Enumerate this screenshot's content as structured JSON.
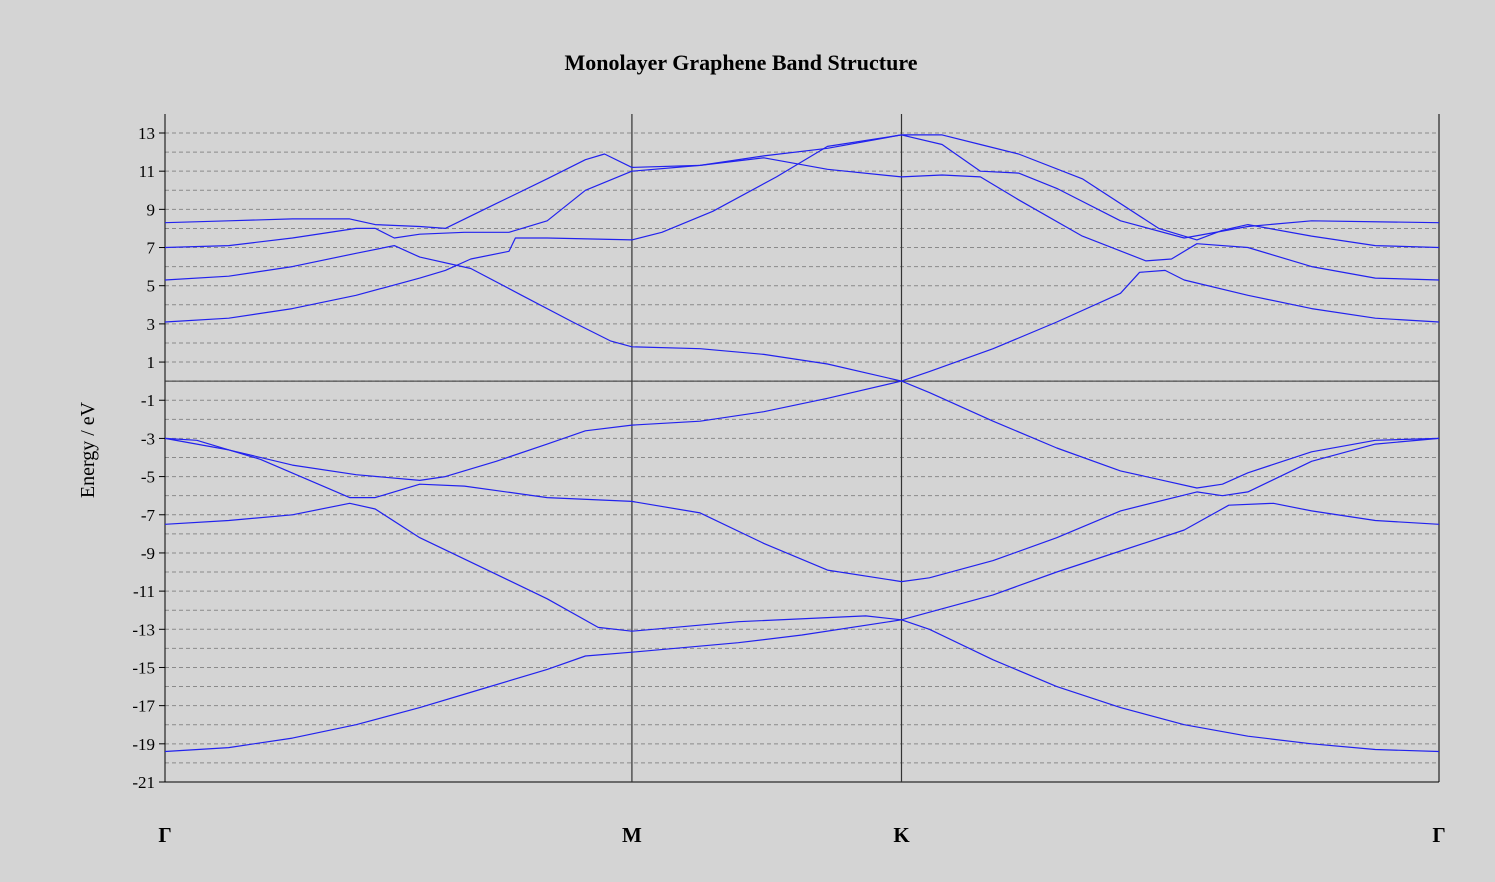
{
  "chart_data": {
    "type": "line",
    "title": "Monolayer Graphene Band Structure",
    "ylabel": "Energy / eV",
    "xlabel": "",
    "ylim": [
      -21,
      14
    ],
    "grid": "horizontal-dashed",
    "legend": "none",
    "y_ticks": [
      "13",
      "11",
      "9",
      "7",
      "5",
      "3",
      "1",
      "-1",
      "-3",
      "-5",
      "-7",
      "-9",
      "-11",
      "-13",
      "-15",
      "-17",
      "-19",
      "-21"
    ],
    "k_points": [
      {
        "label": "Γ",
        "x": 0
      },
      {
        "label": "M",
        "x": 0.3665
      },
      {
        "label": "K",
        "x": 0.5781
      },
      {
        "label": "Γ",
        "x": 1
      }
    ],
    "zero_line": 0,
    "series_color": "#2222ee",
    "bands": [
      {
        "points": [
          [
            0,
            -19.4
          ],
          [
            0.05,
            -19.2
          ],
          [
            0.1,
            -18.7
          ],
          [
            0.15,
            -18.0
          ],
          [
            0.2,
            -17.1
          ],
          [
            0.25,
            -16.1
          ],
          [
            0.3,
            -15.1
          ],
          [
            0.33,
            -14.4
          ],
          [
            0.3665,
            -14.2
          ],
          [
            0.45,
            -13.7
          ],
          [
            0.5,
            -13.3
          ],
          [
            0.5781,
            -12.5
          ],
          [
            0.65,
            -11.2
          ],
          [
            0.7,
            -10.0
          ],
          [
            0.75,
            -8.9
          ],
          [
            0.8,
            -7.8
          ],
          [
            0.835,
            -6.5
          ],
          [
            0.87,
            -6.4
          ],
          [
            0.9,
            -6.8
          ],
          [
            0.95,
            -7.3
          ],
          [
            1,
            -7.5
          ]
        ]
      },
      {
        "points": [
          [
            0,
            -7.5
          ],
          [
            0.05,
            -7.3
          ],
          [
            0.1,
            -7.0
          ],
          [
            0.145,
            -6.4
          ],
          [
            0.165,
            -6.7
          ],
          [
            0.2,
            -8.2
          ],
          [
            0.25,
            -9.8
          ],
          [
            0.3,
            -11.4
          ],
          [
            0.34,
            -12.9
          ],
          [
            0.3665,
            -13.1
          ],
          [
            0.45,
            -12.6
          ],
          [
            0.55,
            -12.3
          ],
          [
            0.5781,
            -12.5
          ],
          [
            0.6,
            -13.0
          ],
          [
            0.65,
            -14.6
          ],
          [
            0.7,
            -16.0
          ],
          [
            0.75,
            -17.1
          ],
          [
            0.8,
            -18.0
          ],
          [
            0.85,
            -18.6
          ],
          [
            0.9,
            -19.0
          ],
          [
            0.95,
            -19.3
          ],
          [
            1,
            -19.4
          ]
        ]
      },
      {
        "points": [
          [
            0,
            -3.0
          ],
          [
            0.025,
            -3.1
          ],
          [
            0.075,
            -4.1
          ],
          [
            0.145,
            -6.1
          ],
          [
            0.165,
            -6.1
          ],
          [
            0.2,
            -5.4
          ],
          [
            0.235,
            -5.5
          ],
          [
            0.3,
            -6.1
          ],
          [
            0.3665,
            -6.3
          ],
          [
            0.42,
            -6.9
          ],
          [
            0.47,
            -8.5
          ],
          [
            0.52,
            -9.9
          ],
          [
            0.5781,
            -10.5
          ],
          [
            0.6,
            -10.3
          ],
          [
            0.65,
            -9.4
          ],
          [
            0.7,
            -8.2
          ],
          [
            0.75,
            -6.8
          ],
          [
            0.81,
            -5.8
          ],
          [
            0.83,
            -6.0
          ],
          [
            0.85,
            -5.8
          ],
          [
            0.9,
            -4.2
          ],
          [
            0.95,
            -3.3
          ],
          [
            1,
            -3.0
          ]
        ]
      },
      {
        "points": [
          [
            0,
            -3.0
          ],
          [
            0.05,
            -3.6
          ],
          [
            0.1,
            -4.4
          ],
          [
            0.15,
            -4.9
          ],
          [
            0.2,
            -5.2
          ],
          [
            0.22,
            -5.0
          ],
          [
            0.26,
            -4.2
          ],
          [
            0.3,
            -3.3
          ],
          [
            0.33,
            -2.6
          ],
          [
            0.3665,
            -2.3
          ],
          [
            0.42,
            -2.1
          ],
          [
            0.47,
            -1.6
          ],
          [
            0.52,
            -0.9
          ],
          [
            0.5781,
            0.0
          ],
          [
            0.6,
            -0.6
          ],
          [
            0.65,
            -2.1
          ],
          [
            0.7,
            -3.5
          ],
          [
            0.75,
            -4.7
          ],
          [
            0.81,
            -5.6
          ],
          [
            0.83,
            -5.4
          ],
          [
            0.85,
            -4.8
          ],
          [
            0.9,
            -3.7
          ],
          [
            0.95,
            -3.1
          ],
          [
            1,
            -3.0
          ]
        ]
      },
      {
        "points": [
          [
            0,
            3.1
          ],
          [
            0.05,
            3.3
          ],
          [
            0.1,
            3.8
          ],
          [
            0.15,
            4.5
          ],
          [
            0.2,
            5.4
          ],
          [
            0.22,
            5.8
          ],
          [
            0.24,
            6.4
          ],
          [
            0.27,
            6.8
          ],
          [
            0.275,
            7.5
          ],
          [
            0.3,
            7.5
          ],
          [
            0.3665,
            7.4
          ],
          [
            0.39,
            7.8
          ],
          [
            0.43,
            8.9
          ],
          [
            0.48,
            10.7
          ],
          [
            0.52,
            12.3
          ],
          [
            0.5781,
            12.9
          ],
          [
            0.61,
            12.4
          ],
          [
            0.64,
            11.0
          ],
          [
            0.67,
            10.9
          ],
          [
            0.7,
            10.1
          ],
          [
            0.75,
            8.4
          ],
          [
            0.8,
            7.5
          ],
          [
            0.85,
            8.1
          ],
          [
            0.9,
            8.4
          ],
          [
            1,
            8.3
          ]
        ]
      },
      {
        "points": [
          [
            0,
            5.3
          ],
          [
            0.05,
            5.5
          ],
          [
            0.1,
            6.0
          ],
          [
            0.15,
            6.7
          ],
          [
            0.18,
            7.1
          ],
          [
            0.2,
            6.5
          ],
          [
            0.24,
            5.9
          ],
          [
            0.28,
            4.5
          ],
          [
            0.32,
            3.1
          ],
          [
            0.35,
            2.1
          ],
          [
            0.3665,
            1.8
          ],
          [
            0.42,
            1.7
          ],
          [
            0.47,
            1.4
          ],
          [
            0.52,
            0.9
          ],
          [
            0.5781,
            0.0
          ],
          [
            0.6,
            0.5
          ],
          [
            0.65,
            1.7
          ],
          [
            0.7,
            3.1
          ],
          [
            0.75,
            4.6
          ],
          [
            0.765,
            5.7
          ],
          [
            0.785,
            5.8
          ],
          [
            0.8,
            5.3
          ],
          [
            0.85,
            4.5
          ],
          [
            0.9,
            3.8
          ],
          [
            0.95,
            3.3
          ],
          [
            1,
            3.1
          ]
        ]
      },
      {
        "points": [
          [
            0,
            7.0
          ],
          [
            0.05,
            7.1
          ],
          [
            0.1,
            7.5
          ],
          [
            0.15,
            8.0
          ],
          [
            0.165,
            8.0
          ],
          [
            0.18,
            7.5
          ],
          [
            0.2,
            7.7
          ],
          [
            0.235,
            7.8
          ],
          [
            0.27,
            7.8
          ],
          [
            0.3,
            8.4
          ],
          [
            0.33,
            10.0
          ],
          [
            0.3665,
            11.0
          ],
          [
            0.42,
            11.3
          ],
          [
            0.47,
            11.8
          ],
          [
            0.52,
            12.2
          ],
          [
            0.5781,
            12.9
          ],
          [
            0.61,
            12.9
          ],
          [
            0.64,
            12.4
          ],
          [
            0.67,
            11.9
          ],
          [
            0.72,
            10.6
          ],
          [
            0.78,
            8.0
          ],
          [
            0.81,
            7.4
          ],
          [
            0.83,
            7.9
          ],
          [
            0.85,
            8.2
          ],
          [
            0.9,
            7.6
          ],
          [
            0.95,
            7.1
          ],
          [
            1,
            7.0
          ]
        ]
      },
      {
        "points": [
          [
            0,
            8.3
          ],
          [
            0.05,
            8.4
          ],
          [
            0.1,
            8.5
          ],
          [
            0.145,
            8.5
          ],
          [
            0.165,
            8.2
          ],
          [
            0.2,
            8.1
          ],
          [
            0.22,
            8.0
          ],
          [
            0.26,
            9.3
          ],
          [
            0.3,
            10.6
          ],
          [
            0.33,
            11.6
          ],
          [
            0.345,
            11.9
          ],
          [
            0.3665,
            11.2
          ],
          [
            0.42,
            11.3
          ],
          [
            0.47,
            11.7
          ],
          [
            0.52,
            11.1
          ],
          [
            0.5781,
            10.7
          ],
          [
            0.61,
            10.8
          ],
          [
            0.64,
            10.7
          ],
          [
            0.67,
            9.5
          ],
          [
            0.72,
            7.6
          ],
          [
            0.77,
            6.3
          ],
          [
            0.79,
            6.4
          ],
          [
            0.81,
            7.2
          ],
          [
            0.85,
            7.0
          ],
          [
            0.9,
            6.0
          ],
          [
            0.95,
            5.4
          ],
          [
            1,
            5.3
          ]
        ]
      }
    ]
  }
}
